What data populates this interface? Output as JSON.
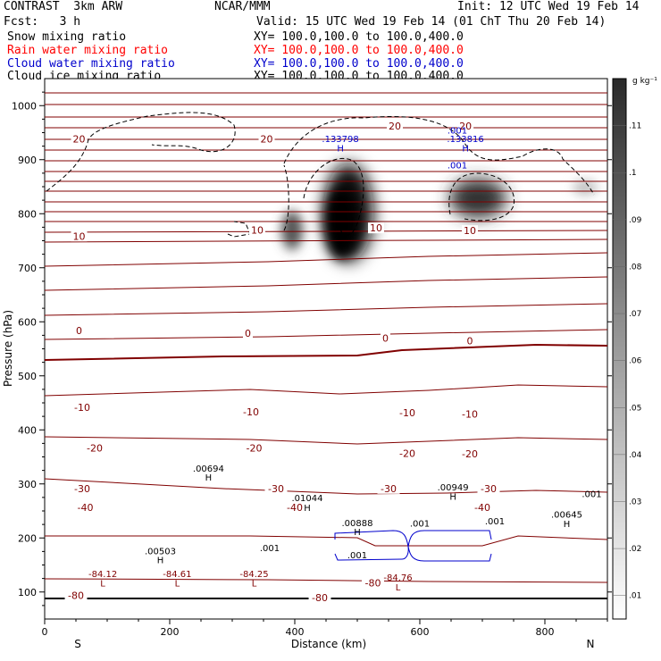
{
  "header": {
    "title_left": "CONTRAST  3km ARW",
    "fcst": "Fcst:   3 h",
    "center": "NCAR/MMM",
    "init": "Init: 12 UTC Wed 19 Feb 14",
    "valid": "Valid: 15 UTC Wed 19 Feb 14 (01 ChT Thu 20 Feb 14)",
    "fields": [
      {
        "name": "Snow mixing ratio",
        "xy": "XY= 100.0,100.0 to 100.0,400.0",
        "color": "#000000"
      },
      {
        "name": "Rain water mixing ratio",
        "xy": "XY= 100.0,100.0 to 100.0,400.0",
        "color": "#ff0000"
      },
      {
        "name": "Cloud water mixing ratio",
        "xy": "XY= 100.0,100.0 to 100.0,400.0",
        "color": "#0000cc"
      },
      {
        "name": "Cloud ice mixing ratio",
        "xy": "XY= 100.0,100.0 to 100.0,400.0",
        "color": "#000000"
      }
    ]
  },
  "chart_data": {
    "type": "contour",
    "xlabel": "Distance (km)",
    "ylabel": "Pressure (hPa)",
    "xlim": [
      0,
      900
    ],
    "ylim": [
      1050,
      50
    ],
    "x_ticks": [
      0,
      200,
      400,
      600,
      800
    ],
    "y_ticks": [
      100,
      200,
      300,
      400,
      500,
      600,
      700,
      800,
      900,
      1000
    ],
    "x_end_labels": {
      "left": "S",
      "right": "N"
    },
    "colorbar": {
      "unit": "g kg⁻¹",
      "levels": [
        0.01,
        0.02,
        0.03,
        0.04,
        0.05,
        0.06,
        0.07,
        0.08,
        0.09,
        0.1,
        0.11
      ],
      "labels": [
        ".01",
        ".02",
        ".03",
        ".04",
        ".05",
        ".06",
        ".07",
        ".08",
        ".09",
        ".1",
        ".11"
      ]
    },
    "temperature_contours": {
      "color": "#800000",
      "labels": [
        {
          "text": "-80",
          "x": 50,
          "p": 92
        },
        {
          "text": "-80",
          "x": 440,
          "p": 88
        },
        {
          "text": "-80",
          "x": 525,
          "p": 115
        },
        {
          "text": "-40",
          "x": 65,
          "p": 255
        },
        {
          "text": "-40",
          "x": 400,
          "p": 255
        },
        {
          "text": "-40",
          "x": 700,
          "p": 255
        },
        {
          "text": "-30",
          "x": 60,
          "p": 290
        },
        {
          "text": "-30",
          "x": 370,
          "p": 290
        },
        {
          "text": "-30",
          "x": 550,
          "p": 290
        },
        {
          "text": "-30",
          "x": 710,
          "p": 290
        },
        {
          "text": "-20",
          "x": 80,
          "p": 365
        },
        {
          "text": "-20",
          "x": 335,
          "p": 365
        },
        {
          "text": "-20",
          "x": 580,
          "p": 355
        },
        {
          "text": "-20",
          "x": 680,
          "p": 354
        },
        {
          "text": "-10",
          "x": 60,
          "p": 440
        },
        {
          "text": "-10",
          "x": 330,
          "p": 432
        },
        {
          "text": "-10",
          "x": 580,
          "p": 430
        },
        {
          "text": "-10",
          "x": 680,
          "p": 428
        },
        {
          "text": "0",
          "x": 55,
          "p": 582
        },
        {
          "text": "0",
          "x": 325,
          "p": 577
        },
        {
          "text": "0",
          "x": 545,
          "p": 568
        },
        {
          "text": "0",
          "x": 680,
          "p": 563
        },
        {
          "text": "10",
          "x": 55,
          "p": 757
        },
        {
          "text": "10",
          "x": 340,
          "p": 768
        },
        {
          "text": "10",
          "x": 530,
          "p": 772
        },
        {
          "text": "10",
          "x": 680,
          "p": 767
        },
        {
          "text": "20",
          "x": 55,
          "p": 937
        },
        {
          "text": "20",
          "x": 355,
          "p": 937
        },
        {
          "text": "20",
          "x": 560,
          "p": 961
        },
        {
          "text": "20",
          "x": 673,
          "p": 961
        }
      ]
    },
    "extrema_labels": [
      {
        "text": "L",
        "x": 93,
        "p": 110,
        "color": "#800000"
      },
      {
        "text": "-84.12",
        "x": 93,
        "p": 128,
        "color": "#800000"
      },
      {
        "text": "L",
        "x": 212,
        "p": 110,
        "color": "#800000"
      },
      {
        "text": "-84.61",
        "x": 212,
        "p": 128,
        "color": "#800000"
      },
      {
        "text": "L",
        "x": 335,
        "p": 110,
        "color": "#800000"
      },
      {
        "text": "-84.25",
        "x": 335,
        "p": 128,
        "color": "#800000"
      },
      {
        "text": "L",
        "x": 565,
        "p": 103,
        "color": "#800000"
      },
      {
        "text": "-84.76",
        "x": 565,
        "p": 121,
        "color": "#800000"
      },
      {
        "text": "H",
        "x": 185,
        "p": 153,
        "color": "#000000"
      },
      {
        "text": ".00503",
        "x": 185,
        "p": 170,
        "color": "#000000"
      },
      {
        "text": ".001",
        "x": 360,
        "p": 176,
        "color": "#000000"
      },
      {
        "text": ".001",
        "x": 500,
        "p": 162,
        "color": "#000000"
      },
      {
        "text": "H",
        "x": 500,
        "p": 205,
        "color": "#000000"
      },
      {
        "text": ".00888",
        "x": 500,
        "p": 222,
        "color": "#000000"
      },
      {
        "text": ".001",
        "x": 600,
        "p": 221,
        "color": "#000000"
      },
      {
        "text": ".001",
        "x": 720,
        "p": 225,
        "color": "#000000"
      },
      {
        "text": "H",
        "x": 835,
        "p": 220,
        "color": "#000000"
      },
      {
        "text": ".00645",
        "x": 835,
        "p": 238,
        "color": "#000000"
      },
      {
        "text": ".001",
        "x": 875,
        "p": 276,
        "color": "#000000"
      },
      {
        "text": "H",
        "x": 420,
        "p": 250,
        "color": "#000000"
      },
      {
        "text": ".01044",
        "x": 420,
        "p": 268,
        "color": "#000000"
      },
      {
        "text": "H",
        "x": 653,
        "p": 271,
        "color": "#000000"
      },
      {
        "text": ".00949",
        "x": 653,
        "p": 288,
        "color": "#000000"
      },
      {
        "text": "H",
        "x": 262,
        "p": 306,
        "color": "#000000"
      },
      {
        "text": ".00694",
        "x": 262,
        "p": 323,
        "color": "#000000"
      },
      {
        "text": ".001",
        "x": 660,
        "p": 884,
        "color": "#0000cc"
      },
      {
        "text": ".001",
        "x": 660,
        "p": 948,
        "color": "#0000cc"
      },
      {
        "text": "H",
        "x": 473,
        "p": 915,
        "color": "#0000cc"
      },
      {
        "text": ".133798",
        "x": 473,
        "p": 933,
        "color": "#0000cc"
      },
      {
        "text": "H",
        "x": 673,
        "p": 915,
        "color": "#0000cc"
      },
      {
        "text": ".133816",
        "x": 673,
        "p": 933,
        "color": "#0000cc"
      }
    ]
  }
}
